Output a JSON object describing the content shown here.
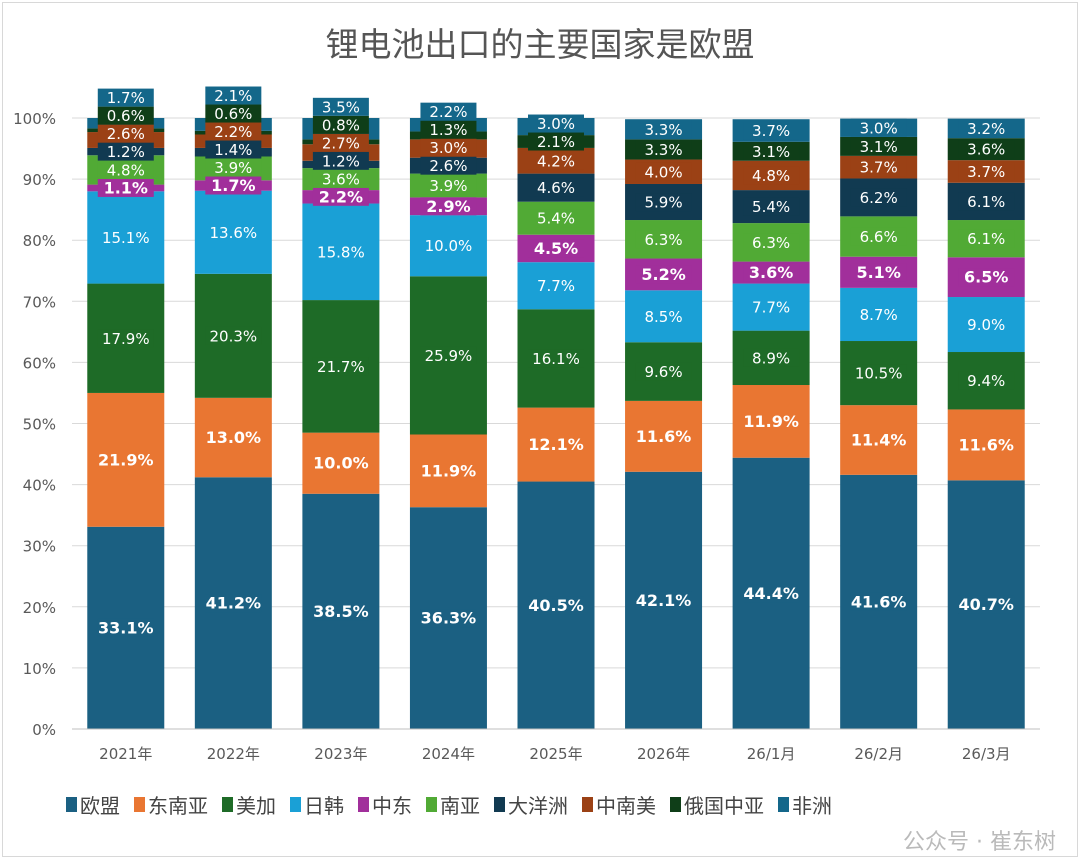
{
  "chart_data": {
    "type": "bar",
    "stacked": true,
    "title": "锂电池出口的主要国家是欧盟",
    "categories": [
      "2021年",
      "2022年",
      "2023年",
      "2024年",
      "2025年",
      "2026年",
      "26/1月",
      "26/2月",
      "26/3月"
    ],
    "ylim": [
      0,
      100
    ],
    "yticks": [
      "0%",
      "10%",
      "20%",
      "30%",
      "40%",
      "50%",
      "60%",
      "70%",
      "80%",
      "90%",
      "100%"
    ],
    "grid": true,
    "legend_position": "bottom",
    "series": [
      {
        "name": "欧盟",
        "color": "#1b6082",
        "bold": true,
        "values": [
          33.1,
          41.2,
          38.5,
          36.3,
          40.5,
          42.1,
          44.4,
          41.6,
          40.7
        ]
      },
      {
        "name": "东南亚",
        "color": "#e97632",
        "bold": true,
        "values": [
          21.9,
          13.0,
          10.0,
          11.9,
          12.1,
          11.6,
          11.9,
          11.4,
          11.6
        ]
      },
      {
        "name": "美加",
        "color": "#1e6b27",
        "bold": false,
        "values": [
          17.9,
          20.3,
          21.7,
          25.9,
          16.1,
          9.6,
          8.9,
          10.5,
          9.4
        ]
      },
      {
        "name": "日韩",
        "color": "#1aa0d6",
        "bold": false,
        "values": [
          15.1,
          13.6,
          15.8,
          10.0,
          7.7,
          8.5,
          7.7,
          8.7,
          9.0
        ]
      },
      {
        "name": "中东",
        "color": "#a12f9b",
        "bold": true,
        "values": [
          1.1,
          1.7,
          2.2,
          2.9,
          4.5,
          5.2,
          3.6,
          5.1,
          6.5
        ]
      },
      {
        "name": "南亚",
        "color": "#51aa35",
        "bold": false,
        "values": [
          4.8,
          3.9,
          3.6,
          3.9,
          5.4,
          6.3,
          6.3,
          6.6,
          6.1
        ]
      },
      {
        "name": "大洋洲",
        "color": "#113a51",
        "bold": false,
        "values": [
          1.2,
          1.4,
          1.2,
          2.6,
          4.6,
          5.9,
          5.4,
          6.2,
          6.1
        ]
      },
      {
        "name": "中南美",
        "color": "#9b4115",
        "bold": false,
        "values": [
          2.6,
          2.2,
          2.7,
          3.0,
          4.2,
          4.0,
          4.8,
          3.7,
          3.7
        ]
      },
      {
        "name": "俄国中亚",
        "color": "#0f3e18",
        "bold": false,
        "hidden_label": true,
        "values": [
          0.6,
          0.6,
          0.8,
          1.3,
          2.1,
          3.3,
          3.1,
          3.1,
          3.6
        ]
      },
      {
        "name": "非洲",
        "color": "#14678a",
        "bold": false,
        "values": [
          1.7,
          2.1,
          3.5,
          2.2,
          3.0,
          3.3,
          3.7,
          3.0,
          3.2
        ]
      }
    ]
  },
  "watermark": "公众号 · 崔东树"
}
